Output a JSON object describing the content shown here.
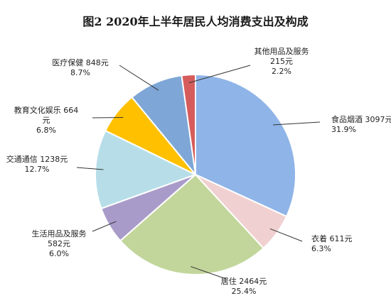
{
  "chart_data": {
    "type": "pie",
    "title": "图2    2020年上半年居民人均消费支出及构成",
    "slices": [
      {
        "name": "食品烟酒",
        "value": 3097,
        "unit": "元",
        "percent": "31.9%",
        "color": "#8FB4E8"
      },
      {
        "name": "衣着",
        "value": 611,
        "unit": "元",
        "percent": "6.3%",
        "color": "#F0D0D0"
      },
      {
        "name": "居住",
        "value": 2464,
        "unit": "元",
        "percent": "25.4%",
        "color": "#C2D69B"
      },
      {
        "name": "生活用品及服务",
        "value": 582,
        "unit": "元",
        "percent": "6.0%",
        "color": "#A99BC9"
      },
      {
        "name": "交通通信",
        "value": 1238,
        "unit": "元",
        "percent": "12.7%",
        "color": "#B7DEE8"
      },
      {
        "name": "教育文化娱乐",
        "value": 664,
        "unit": "元",
        "percent": "6.8%",
        "color": "#FFC000"
      },
      {
        "name": "医疗保健",
        "value": 848,
        "unit": "元",
        "percent": "8.7%",
        "color": "#7EA6D6"
      },
      {
        "name": "其他用品及服务",
        "value": 215,
        "unit": "元",
        "percent": "2.2%",
        "color": "#D65C5C"
      }
    ],
    "labels": [
      {
        "line1": "食品烟酒 3097元",
        "line2": "31.9%"
      },
      {
        "line1": "衣着 611元",
        "line2": "6.3%"
      },
      {
        "line1": "居住 2464元",
        "line2": "25.4%"
      },
      {
        "line1": "生活用品及服务",
        "line2": "582元",
        "line3": "6.0%"
      },
      {
        "line1": "交通通信 1238元",
        "line2": "12.7%"
      },
      {
        "line1": "教育文化娱乐 664",
        "line2": "元",
        "line3": "6.8%"
      },
      {
        "line1": "医疗保健 848元",
        "line2": "8.7%"
      },
      {
        "line1": "其他用品及服务",
        "line2": "215元",
        "line3": "2.2%"
      }
    ]
  }
}
